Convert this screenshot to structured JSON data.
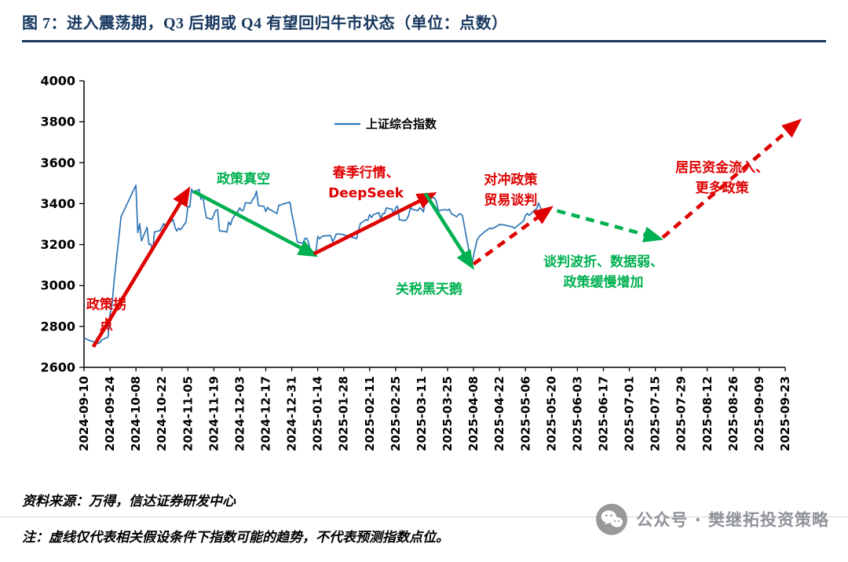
{
  "page": {
    "title": "图 7：进入震荡期，Q3 后期或 Q4 有望回归牛市状态（单位：点数）",
    "footer": {
      "source": "资料来源：万得，信达证券研发中心",
      "note": "注：虚线仅代表相关假设条件下指数可能的趋势，不代表预测指数点位。",
      "wechat_label": "公众号 · 樊继拓投资策略"
    }
  },
  "colors": {
    "title_navy": "#17375E",
    "line_blue": "#2E75B6",
    "red": "#DF0000",
    "green": "#00B050",
    "axis_black": "#000000",
    "wechat_gray": "#8F9399"
  },
  "icons": {
    "wechat_icon": "wechat-chat-bubbles-in-gray-circle"
  },
  "chart_data": {
    "type": "line",
    "legend": [
      {
        "label": "上证综合指数",
        "color_key": "line_blue"
      }
    ],
    "ylim": [
      2600,
      4000
    ],
    "yticks": [
      2600,
      2800,
      3000,
      3200,
      3400,
      3600,
      3800,
      4000
    ],
    "x_tick_interval_days": 14,
    "x_total_days": 378,
    "xticks": [
      "2024-09-10",
      "2024-09-24",
      "2024-10-08",
      "2024-10-22",
      "2024-11-05",
      "2024-11-19",
      "2024-12-03",
      "2024-12-17",
      "2024-12-31",
      "2025-01-14",
      "2025-01-28",
      "2025-02-11",
      "2025-02-25",
      "2025-03-11",
      "2025-03-25",
      "2025-04-08",
      "2025-04-22",
      "2025-05-06",
      "2025-05-20",
      "2025-06-03",
      "2025-06-17",
      "2025-07-01",
      "2025-07-15",
      "2025-07-29",
      "2025-08-12",
      "2025-08-26",
      "2025-09-09",
      "2025-09-23"
    ],
    "series": [
      {
        "name": "上证综合指数",
        "points": [
          [
            0,
            2744
          ],
          [
            3,
            2731
          ],
          [
            6,
            2722
          ],
          [
            8,
            2717
          ],
          [
            10,
            2736
          ],
          [
            13,
            2748
          ],
          [
            14,
            2863
          ],
          [
            15,
            2897
          ],
          [
            16,
            3000
          ],
          [
            17,
            3088
          ],
          [
            20,
            3336
          ],
          [
            28,
            3490
          ],
          [
            29,
            3258
          ],
          [
            30,
            3302
          ],
          [
            31,
            3218
          ],
          [
            34,
            3284
          ],
          [
            35,
            3201
          ],
          [
            36,
            3202
          ],
          [
            37,
            3169
          ],
          [
            38,
            3262
          ],
          [
            41,
            3268
          ],
          [
            42,
            3286
          ],
          [
            43,
            3303
          ],
          [
            44,
            3280
          ],
          [
            45,
            3299
          ],
          [
            48,
            3322
          ],
          [
            49,
            3286
          ],
          [
            50,
            3266
          ],
          [
            51,
            3280
          ],
          [
            52,
            3272
          ],
          [
            55,
            3310
          ],
          [
            56,
            3386
          ],
          [
            57,
            3383
          ],
          [
            58,
            3471
          ],
          [
            59,
            3452
          ],
          [
            62,
            3470
          ],
          [
            63,
            3421
          ],
          [
            64,
            3439
          ],
          [
            65,
            3379
          ],
          [
            66,
            3331
          ],
          [
            69,
            3323
          ],
          [
            70,
            3346
          ],
          [
            71,
            3368
          ],
          [
            72,
            3370
          ],
          [
            73,
            3267
          ],
          [
            76,
            3264
          ],
          [
            77,
            3260
          ],
          [
            78,
            3310
          ],
          [
            79,
            3296
          ],
          [
            80,
            3326
          ],
          [
            83,
            3364
          ],
          [
            84,
            3379
          ],
          [
            85,
            3365
          ],
          [
            86,
            3369
          ],
          [
            87,
            3404
          ],
          [
            90,
            3402
          ],
          [
            91,
            3422
          ],
          [
            92,
            3432
          ],
          [
            93,
            3461
          ],
          [
            94,
            3391
          ],
          [
            97,
            3386
          ],
          [
            98,
            3361
          ],
          [
            99,
            3382
          ],
          [
            100,
            3370
          ],
          [
            101,
            3368
          ],
          [
            104,
            3351
          ],
          [
            105,
            3393
          ],
          [
            106,
            3393
          ],
          [
            107,
            3398
          ],
          [
            108,
            3400
          ],
          [
            111,
            3407
          ],
          [
            112,
            3352
          ],
          [
            114,
            3263
          ],
          [
            115,
            3212
          ],
          [
            118,
            3206
          ],
          [
            119,
            3229
          ],
          [
            120,
            3231
          ],
          [
            121,
            3212
          ],
          [
            122,
            3168
          ],
          [
            125,
            3161
          ],
          [
            126,
            3240
          ],
          [
            127,
            3228
          ],
          [
            128,
            3237
          ],
          [
            129,
            3242
          ],
          [
            132,
            3244
          ],
          [
            133,
            3243
          ],
          [
            134,
            3214
          ],
          [
            135,
            3230
          ],
          [
            136,
            3252
          ],
          [
            139,
            3250
          ],
          [
            147,
            3229
          ],
          [
            148,
            3270
          ],
          [
            149,
            3303
          ],
          [
            152,
            3322
          ],
          [
            153,
            3318
          ],
          [
            154,
            3346
          ],
          [
            155,
            3332
          ],
          [
            156,
            3346
          ],
          [
            159,
            3356
          ],
          [
            160,
            3324
          ],
          [
            161,
            3351
          ],
          [
            162,
            3351
          ],
          [
            163,
            3379
          ],
          [
            166,
            3373
          ],
          [
            167,
            3346
          ],
          [
            168,
            3380
          ],
          [
            169,
            3388
          ],
          [
            170,
            3321
          ],
          [
            173,
            3317
          ],
          [
            174,
            3324
          ],
          [
            175,
            3342
          ],
          [
            176,
            3381
          ],
          [
            177,
            3372
          ],
          [
            180,
            3366
          ],
          [
            181,
            3380
          ],
          [
            182,
            3372
          ],
          [
            183,
            3359
          ],
          [
            184,
            3420
          ],
          [
            187,
            3426
          ],
          [
            188,
            3430
          ],
          [
            189,
            3427
          ],
          [
            190,
            3408
          ],
          [
            191,
            3365
          ],
          [
            194,
            3370
          ],
          [
            195,
            3370
          ],
          [
            196,
            3368
          ],
          [
            197,
            3373
          ],
          [
            198,
            3351
          ],
          [
            201,
            3336
          ],
          [
            202,
            3348
          ],
          [
            203,
            3350
          ],
          [
            204,
            3342
          ],
          [
            209,
            3097
          ],
          [
            210,
            3146
          ],
          [
            211,
            3187
          ],
          [
            212,
            3224
          ],
          [
            213,
            3239
          ],
          [
            216,
            3263
          ],
          [
            217,
            3268
          ],
          [
            218,
            3276
          ],
          [
            219,
            3281
          ],
          [
            220,
            3277
          ],
          [
            223,
            3292
          ],
          [
            224,
            3299
          ],
          [
            225,
            3296
          ],
          [
            226,
            3297
          ],
          [
            227,
            3295
          ],
          [
            230,
            3288
          ],
          [
            231,
            3287
          ],
          [
            232,
            3279
          ],
          [
            237,
            3316
          ],
          [
            238,
            3342
          ],
          [
            239,
            3352
          ],
          [
            240,
            3342
          ],
          [
            243,
            3369
          ],
          [
            244,
            3375
          ],
          [
            245,
            3403
          ],
          [
            246,
            3381
          ],
          [
            247,
            3367
          ],
          [
            250,
            3367
          ],
          [
            251,
            3380
          ]
        ]
      }
    ],
    "arrows": [
      {
        "phase": "政策拐点",
        "style": "solid",
        "color": "red",
        "from": [
          5,
          2700
        ],
        "to": [
          56,
          3465
        ]
      },
      {
        "phase": "政策真空",
        "style": "solid",
        "color": "green",
        "from": [
          59,
          3460
        ],
        "to": [
          124,
          3150
        ]
      },
      {
        "phase": "春季行情、DeepSeek",
        "style": "solid",
        "color": "red",
        "from": [
          124,
          3155
        ],
        "to": [
          188,
          3445
        ]
      },
      {
        "phase": "关税黑天鹅",
        "style": "solid",
        "color": "green",
        "from": [
          184,
          3450
        ],
        "to": [
          209,
          3095
        ]
      },
      {
        "phase": "对冲政策 贸易谈判",
        "style": "dashed",
        "color": "red",
        "from": [
          210,
          3105
        ],
        "to": [
          251,
          3375
        ]
      },
      {
        "phase": "谈判波折、数据弱、政策缓慢增加",
        "style": "dashed",
        "color": "green",
        "from": [
          255,
          3365
        ],
        "to": [
          310,
          3230
        ]
      },
      {
        "phase": "居民资金流入、更多政策",
        "style": "dashed",
        "color": "red",
        "from": [
          312,
          3235
        ],
        "to": [
          385,
          3800
        ]
      }
    ],
    "annotations": [
      {
        "text": [
          "政策拐",
          "点"
        ],
        "color": "red",
        "x": 12,
        "y": 2885
      },
      {
        "text": [
          "政策真空"
        ],
        "color": "green",
        "x": 86,
        "y": 3500
      },
      {
        "text": [
          "春季行情、",
          "DeepSeek"
        ],
        "color": "red",
        "x": 152,
        "y": 3530
      },
      {
        "text": [
          "对冲政策",
          "贸易谈判"
        ],
        "color": "red",
        "x": 230,
        "y": 3495
      },
      {
        "text": [
          "关税黑天鹅"
        ],
        "color": "green",
        "x": 186,
        "y": 2960
      },
      {
        "text": [
          "谈判波折、数据弱、",
          "政策缓慢增加"
        ],
        "color": "green",
        "x": 280,
        "y": 3095
      },
      {
        "text": [
          "居民资金流入、",
          "更多政策"
        ],
        "color": "red",
        "x": 344,
        "y": 3555
      }
    ]
  }
}
